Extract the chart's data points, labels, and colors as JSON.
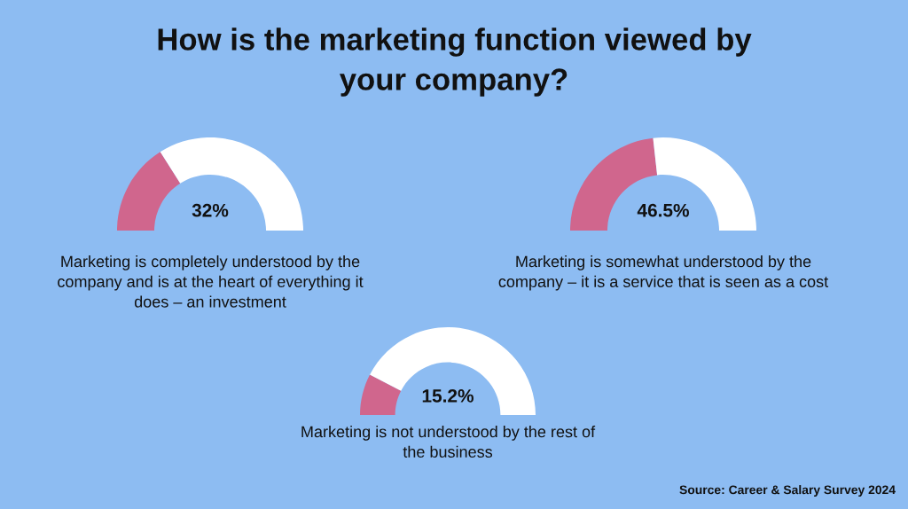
{
  "chart_data": [
    {
      "type": "donut",
      "title": "How is the marketing function viewed by\nyour company?",
      "categories": [
        null,
        null
      ],
      "values": [
        32,
        68
      ],
      "colors": [
        "#d0668d",
        "#ffffff"
      ],
      "annotations": [
        "32%"
      ],
      "xlabel": "Marketing is completely understood by the\ncompany and is at the heart of everything it\ndoes – an investment"
    },
    {
      "type": "donut",
      "categories": [
        null,
        null
      ],
      "values": [
        46.5,
        53.5
      ],
      "colors": [
        "#d0668d",
        "#ffffff"
      ],
      "annotations": [
        "46.5%"
      ],
      "xlabel": "Marketing is somewhat understood by the\ncompany – it is a service that is seen as a cost"
    },
    {
      "type": "donut",
      "categories": [
        null,
        null
      ],
      "values": [
        15.2,
        84.8
      ],
      "colors": [
        "#d0668d",
        "#ffffff"
      ],
      "annotations": [
        "15.2%",
        "Source: Career & Salary Survey 2024"
      ],
      "xlabel": "Marketing is not understood by the rest of\nthe business"
    }
  ]
}
